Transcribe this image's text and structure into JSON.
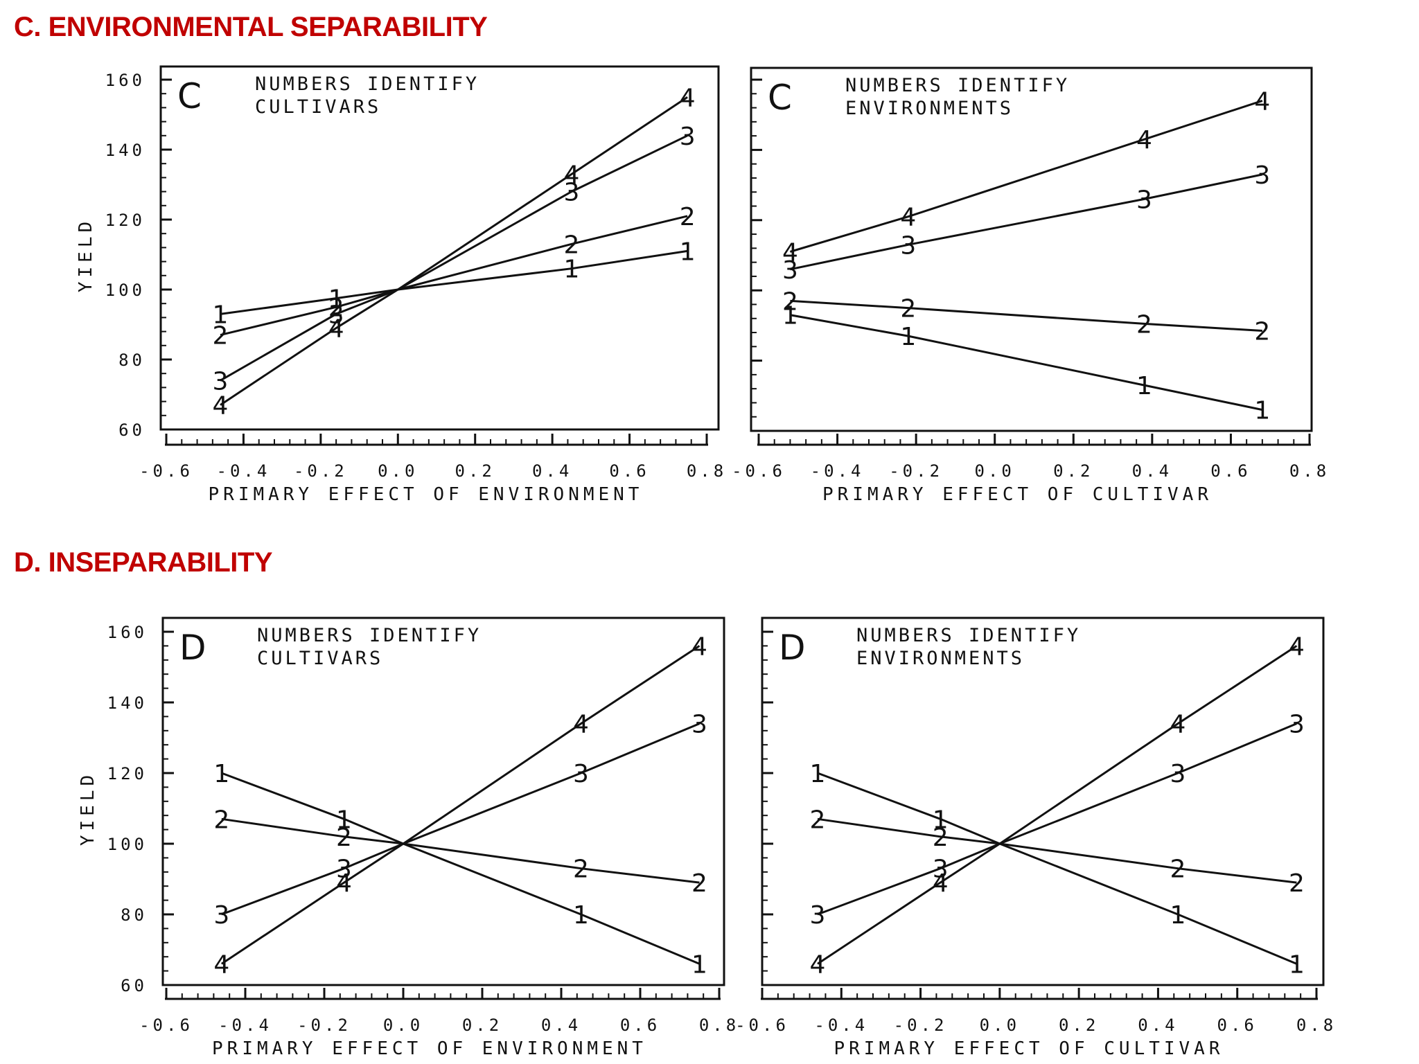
{
  "colors": {
    "section_title": "#c00000",
    "ink": "#111111",
    "background": "#ffffff"
  },
  "sections": [
    {
      "id": "c",
      "title": "C. ENVIRONMENTAL SEPARABILITY"
    },
    {
      "id": "d",
      "title": "D. INSEPARABILITY"
    }
  ],
  "chart_data": [
    {
      "type": "line",
      "section": "c",
      "panel_label": "C",
      "note": [
        "NUMBERS IDENTIFY",
        "CULTIVARS"
      ],
      "xlabel": "PRIMARY EFFECT OF ENVIRONMENT",
      "ylabel": "YIELD",
      "xlim": [
        -0.6,
        0.8
      ],
      "ylim": [
        60,
        160
      ],
      "xticks": [
        "-0.6",
        "-0.4",
        "-0.2",
        "0.0",
        "0.2",
        "0.4",
        "0.6",
        "0.8"
      ],
      "yticks": [
        "60",
        "80",
        "100",
        "120",
        "140",
        "160"
      ],
      "x": [
        -0.46,
        -0.16,
        0.0,
        0.45,
        0.75
      ],
      "series": [
        {
          "name": "1",
          "values": [
            93,
            97.5,
            100,
            106,
            111
          ]
        },
        {
          "name": "2",
          "values": [
            87,
            95,
            100,
            113,
            121
          ]
        },
        {
          "name": "3",
          "values": [
            74,
            93,
            100,
            128,
            144
          ]
        },
        {
          "name": "4",
          "values": [
            67,
            89,
            100,
            133,
            155
          ]
        }
      ],
      "marked_x": [
        -0.46,
        -0.16,
        0.45,
        0.75
      ]
    },
    {
      "type": "line",
      "section": "c",
      "panel_label": "C",
      "note": [
        "NUMBERS IDENTIFY",
        "ENVIRONMENTS"
      ],
      "xlabel": "PRIMARY EFFECT OF CULTIVAR",
      "ylabel": "",
      "xlim": [
        -0.6,
        0.8
      ],
      "ylim": [
        60,
        160
      ],
      "xticks": [
        "-0.6",
        "-0.4",
        "-0.2",
        "0.0",
        "0.2",
        "0.4",
        "0.6",
        "0.8"
      ],
      "yticks": [],
      "x": [
        -0.52,
        -0.22,
        0.38,
        0.68
      ],
      "series": [
        {
          "name": "1",
          "values": [
            93,
            87,
            73,
            66
          ]
        },
        {
          "name": "2",
          "values": [
            97,
            95,
            90.5,
            88.5
          ]
        },
        {
          "name": "3",
          "values": [
            106,
            113,
            126,
            133
          ]
        },
        {
          "name": "4",
          "values": [
            111,
            121,
            143,
            154
          ]
        }
      ],
      "marked_x": [
        -0.52,
        -0.22,
        0.38,
        0.68
      ]
    },
    {
      "type": "line",
      "section": "d",
      "panel_label": "D",
      "note": [
        "NUMBERS IDENTIFY",
        "CULTIVARS"
      ],
      "xlabel": "PRIMARY EFFECT OF ENVIRONMENT",
      "ylabel": "YIELD",
      "xlim": [
        -0.6,
        0.8
      ],
      "ylim": [
        60,
        160
      ],
      "xticks": [
        "-0.6",
        "-0.4",
        "-0.2",
        "0.0",
        "0.2",
        "0.4",
        "0.6",
        "0.8"
      ],
      "yticks": [
        "60",
        "80",
        "100",
        "120",
        "140",
        "160"
      ],
      "x": [
        -0.46,
        -0.15,
        0.0,
        0.45,
        0.75
      ],
      "series": [
        {
          "name": "1",
          "values": [
            120,
            107,
            100,
            80,
            66
          ]
        },
        {
          "name": "2",
          "values": [
            107,
            102,
            100,
            93,
            89
          ]
        },
        {
          "name": "3",
          "values": [
            80,
            93,
            100,
            120,
            134
          ]
        },
        {
          "name": "4",
          "values": [
            66,
            89,
            100,
            134,
            156
          ]
        }
      ],
      "marked_x": [
        -0.46,
        -0.15,
        0.45,
        0.75
      ]
    },
    {
      "type": "line",
      "section": "d",
      "panel_label": "D",
      "note": [
        "NUMBERS IDENTIFY",
        "ENVIRONMENTS"
      ],
      "xlabel": "PRIMARY EFFECT OF CULTIVAR",
      "ylabel": "",
      "xlim": [
        -0.6,
        0.8
      ],
      "ylim": [
        60,
        160
      ],
      "xticks": [
        "-0.6",
        "-0.4",
        "-0.2",
        "0.0",
        "0.2",
        "0.4",
        "0.6",
        "0.8"
      ],
      "yticks": [],
      "x": [
        -0.46,
        -0.15,
        0.0,
        0.45,
        0.75
      ],
      "series": [
        {
          "name": "1",
          "values": [
            120,
            107,
            100,
            80,
            66
          ]
        },
        {
          "name": "2",
          "values": [
            107,
            102,
            100,
            93,
            89
          ]
        },
        {
          "name": "3",
          "values": [
            80,
            93,
            100,
            120,
            134
          ]
        },
        {
          "name": "4",
          "values": [
            66,
            89,
            100,
            134,
            156
          ]
        }
      ],
      "marked_x": [
        -0.46,
        -0.15,
        0.45,
        0.75
      ]
    }
  ]
}
